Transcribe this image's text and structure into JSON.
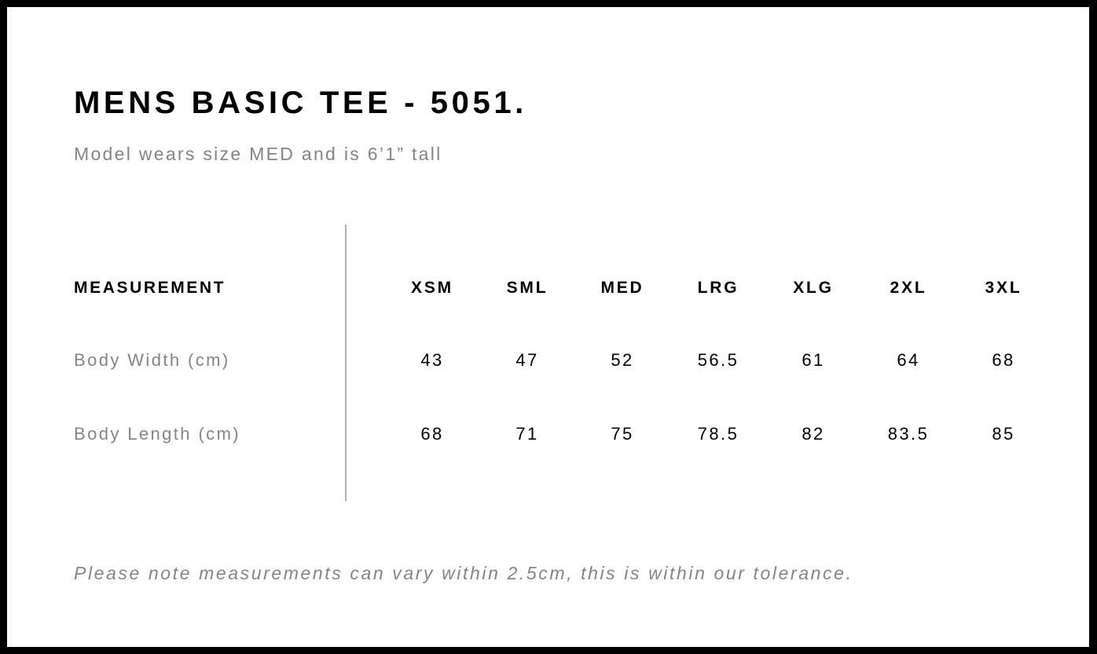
{
  "title": "MENS BASIC TEE - 5051.",
  "subtitle": "Model wears size MED and is 6’1” tall",
  "table": {
    "header_label": "MEASUREMENT",
    "sizes": [
      "XSM",
      "SML",
      "MED",
      "LRG",
      "XLG",
      "2XL",
      "3XL"
    ],
    "rows": [
      {
        "label": "Body Width (cm)",
        "values": [
          "43",
          "47",
          "52",
          "56.5",
          "61",
          "64",
          "68"
        ]
      },
      {
        "label": "Body Length (cm)",
        "values": [
          "68",
          "71",
          "75",
          "78.5",
          "82",
          "83.5",
          "85"
        ]
      }
    ]
  },
  "note": "Please note measurements can vary within 2.5cm, this is within our tolerance."
}
